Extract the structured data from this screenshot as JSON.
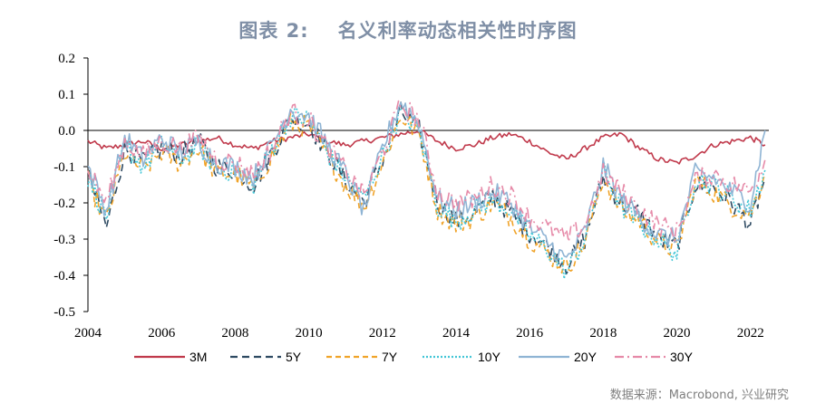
{
  "title": {
    "prefix": "图表 2:",
    "text": "名义利率动态相关性时序图"
  },
  "source": "数据来源：Macrobond, 兴业研究",
  "chart_data": {
    "type": "line",
    "x_ticks": [
      "2004",
      "2006",
      "2008",
      "2010",
      "2012",
      "2014",
      "2016",
      "2018",
      "2020",
      "2022"
    ],
    "y_ticks": [
      "0.2",
      "0.1",
      "0.0",
      "-0.1",
      "-0.2",
      "-0.3",
      "-0.4",
      "-0.5"
    ],
    "xlim": [
      2004,
      2022.5
    ],
    "ylim": [
      -0.5,
      0.2
    ],
    "legend_position": "bottom",
    "x": [
      2004.0,
      2004.5,
      2005.0,
      2005.5,
      2006.0,
      2006.5,
      2007.0,
      2007.5,
      2008.0,
      2008.5,
      2009.0,
      2009.5,
      2010.0,
      2010.5,
      2011.0,
      2011.5,
      2012.0,
      2012.5,
      2013.0,
      2013.5,
      2014.0,
      2014.5,
      2015.0,
      2015.5,
      2016.0,
      2016.5,
      2017.0,
      2017.5,
      2018.0,
      2018.5,
      2019.0,
      2019.5,
      2020.0,
      2020.5,
      2021.0,
      2021.5,
      2022.0,
      2022.4
    ],
    "series": [
      {
        "name": "3M",
        "color": "#c0394b",
        "dash": "",
        "values": [
          -0.03,
          -0.05,
          -0.04,
          -0.03,
          -0.05,
          -0.04,
          -0.03,
          -0.02,
          -0.04,
          -0.05,
          -0.03,
          -0.02,
          -0.01,
          -0.03,
          -0.04,
          -0.03,
          -0.02,
          -0.01,
          0.0,
          -0.03,
          -0.05,
          -0.04,
          -0.02,
          -0.01,
          -0.03,
          -0.06,
          -0.08,
          -0.05,
          -0.02,
          -0.01,
          -0.05,
          -0.08,
          -0.09,
          -0.07,
          -0.04,
          -0.03,
          -0.02,
          -0.04
        ]
      },
      {
        "name": "5Y",
        "color": "#2e4a62",
        "dash": "8,5",
        "values": [
          -0.12,
          -0.27,
          -0.05,
          -0.09,
          -0.05,
          -0.07,
          -0.03,
          -0.1,
          -0.11,
          -0.15,
          -0.06,
          0.03,
          0.02,
          -0.06,
          -0.14,
          -0.2,
          -0.08,
          0.05,
          0.0,
          -0.2,
          -0.25,
          -0.23,
          -0.18,
          -0.23,
          -0.28,
          -0.32,
          -0.37,
          -0.3,
          -0.13,
          -0.2,
          -0.23,
          -0.3,
          -0.32,
          -0.15,
          -0.16,
          -0.2,
          -0.26,
          -0.13
        ]
      },
      {
        "name": "7Y",
        "color": "#f0a42a",
        "dash": "6,4",
        "values": [
          -0.14,
          -0.25,
          -0.06,
          -0.11,
          -0.06,
          -0.09,
          -0.05,
          -0.12,
          -0.12,
          -0.16,
          -0.07,
          0.02,
          0.01,
          -0.07,
          -0.15,
          -0.21,
          -0.09,
          0.04,
          -0.01,
          -0.22,
          -0.26,
          -0.24,
          -0.2,
          -0.24,
          -0.3,
          -0.34,
          -0.38,
          -0.31,
          -0.13,
          -0.22,
          -0.25,
          -0.31,
          -0.33,
          -0.14,
          -0.17,
          -0.21,
          -0.23,
          -0.12
        ]
      },
      {
        "name": "10Y",
        "color": "#43c6d6",
        "dash": "2,2",
        "values": [
          -0.13,
          -0.24,
          -0.04,
          -0.1,
          -0.04,
          -0.08,
          -0.04,
          -0.11,
          -0.11,
          -0.15,
          -0.05,
          0.04,
          0.03,
          -0.06,
          -0.13,
          -0.19,
          -0.07,
          0.05,
          0.0,
          -0.21,
          -0.25,
          -0.22,
          -0.19,
          -0.22,
          -0.29,
          -0.33,
          -0.39,
          -0.3,
          -0.11,
          -0.21,
          -0.26,
          -0.3,
          -0.34,
          -0.13,
          -0.15,
          -0.19,
          -0.22,
          -0.11
        ]
      },
      {
        "name": "20Y",
        "color": "#8fb4d4",
        "dash": "",
        "values": [
          -0.1,
          -0.22,
          -0.02,
          -0.08,
          -0.02,
          -0.06,
          -0.03,
          -0.09,
          -0.1,
          -0.13,
          -0.04,
          0.06,
          0.04,
          -0.04,
          -0.12,
          -0.22,
          -0.05,
          0.08,
          0.02,
          -0.19,
          -0.22,
          -0.2,
          -0.17,
          -0.2,
          -0.27,
          -0.31,
          -0.36,
          -0.28,
          -0.1,
          -0.19,
          -0.24,
          -0.29,
          -0.3,
          -0.12,
          -0.13,
          -0.17,
          -0.2,
          0.0
        ]
      },
      {
        "name": "30Y",
        "color": "#e68aa8",
        "dash": "10,4,2,4",
        "values": [
          -0.11,
          -0.2,
          -0.03,
          -0.07,
          -0.03,
          -0.05,
          -0.02,
          -0.08,
          -0.09,
          -0.12,
          -0.05,
          0.05,
          0.03,
          -0.05,
          -0.11,
          -0.18,
          -0.06,
          0.07,
          0.03,
          -0.17,
          -0.2,
          -0.19,
          -0.15,
          -0.18,
          -0.24,
          -0.27,
          -0.3,
          -0.26,
          -0.12,
          -0.17,
          -0.22,
          -0.26,
          -0.28,
          -0.14,
          -0.12,
          -0.15,
          -0.17,
          -0.08
        ]
      }
    ]
  }
}
